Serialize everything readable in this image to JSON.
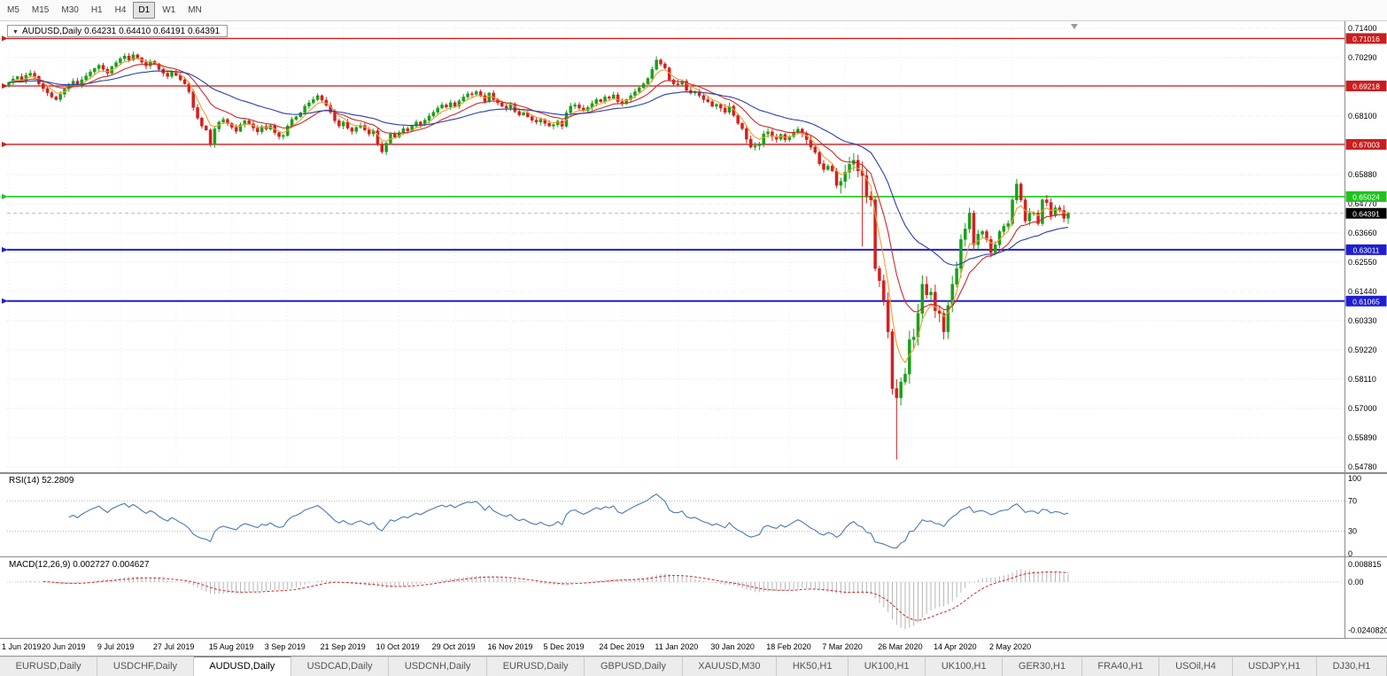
{
  "toolbar": {
    "timeframes": [
      "M5",
      "M15",
      "M30",
      "H1",
      "H4",
      "D1",
      "W1",
      "MN"
    ],
    "active": "D1"
  },
  "price_panel": {
    "dropdown_icon": "▼",
    "symbol_label": "AUDUSD,Daily",
    "ohlc_text": "0.64231 0.64410 0.64191 0.64391"
  },
  "rsi_panel": {
    "header": "RSI(14) 52.2809"
  },
  "macd_panel": {
    "header": "MACD(12,26,9) 0.002727 0.004627"
  },
  "chart_data": {
    "type": "candlestick",
    "title": "AUDUSD,Daily",
    "symbol": "AUDUSD",
    "timeframe": "Daily",
    "current_ohlc": {
      "open": 0.64231,
      "high": 0.6441,
      "low": 0.64191,
      "close": 0.64391
    },
    "price_axis": {
      "min": 0.5478,
      "max": 0.714,
      "ticks": [
        "0.71400",
        "0.70290",
        "0.69180",
        "0.68100",
        "0.66990",
        "0.65880",
        "0.64770",
        "0.63660",
        "0.62550",
        "0.61440",
        "0.60330",
        "0.59220",
        "0.58110",
        "0.57000",
        "0.55890",
        "0.54780"
      ]
    },
    "x_labels": [
      "1 Jun 2019",
      "20 Jun 2019",
      "9 Jul 2019",
      "27 Jul 2019",
      "15 Aug 2019",
      "3 Sep 2019",
      "21 Sep 2019",
      "10 Oct 2019",
      "29 Oct 2019",
      "16 Nov 2019",
      "5 Dec 2019",
      "24 Dec 2019",
      "11 Jan 2020",
      "30 Jan 2020",
      "18 Feb 2020",
      "7 Mar 2020",
      "26 Mar 2020",
      "14 Apr 2020",
      "2 May 2020"
    ],
    "closes": [
      0.6935,
      0.6948,
      0.6957,
      0.694,
      0.6962,
      0.697,
      0.6958,
      0.693,
      0.6912,
      0.6896,
      0.688,
      0.687,
      0.689,
      0.691,
      0.6928,
      0.694,
      0.6925,
      0.6945,
      0.696,
      0.6975,
      0.6988,
      0.7,
      0.6985,
      0.697,
      0.6995,
      0.701,
      0.7025,
      0.7035,
      0.702,
      0.704,
      0.7028,
      0.7012,
      0.6998,
      0.7015,
      0.7005,
      0.6985,
      0.697,
      0.6958,
      0.6975,
      0.6962,
      0.6945,
      0.693,
      0.69,
      0.684,
      0.68,
      0.677,
      0.6755,
      0.67,
      0.6759,
      0.6785,
      0.6795,
      0.678,
      0.6765,
      0.675,
      0.6775,
      0.679,
      0.6778,
      0.6762,
      0.6748,
      0.6768,
      0.6758,
      0.6772,
      0.6745,
      0.673,
      0.6734,
      0.677,
      0.6795,
      0.6805,
      0.682,
      0.6845,
      0.6858,
      0.687,
      0.6885,
      0.6868,
      0.6848,
      0.6822,
      0.679,
      0.677,
      0.6785,
      0.6762,
      0.675,
      0.6765,
      0.6772,
      0.6755,
      0.674,
      0.6752,
      0.67,
      0.6672,
      0.6705,
      0.674,
      0.6728,
      0.6745,
      0.676,
      0.6752,
      0.677,
      0.6785,
      0.6775,
      0.6792,
      0.6808,
      0.6822,
      0.6838,
      0.685,
      0.6842,
      0.6858,
      0.6845,
      0.6865,
      0.688,
      0.6892,
      0.689,
      0.69,
      0.6885,
      0.6862,
      0.6895,
      0.687,
      0.6858,
      0.6845,
      0.6838,
      0.685,
      0.6825,
      0.6812,
      0.682,
      0.6805,
      0.6792,
      0.6785,
      0.6795,
      0.678,
      0.677,
      0.6775,
      0.6788,
      0.6769,
      0.682,
      0.6845,
      0.685,
      0.6838,
      0.6828,
      0.684,
      0.6855,
      0.687,
      0.6862,
      0.688,
      0.6875,
      0.6888,
      0.6862,
      0.6855,
      0.687,
      0.6885,
      0.69,
      0.6915,
      0.693,
      0.695,
      0.6985,
      0.702,
      0.7005,
      0.699,
      0.6945,
      0.693,
      0.6928,
      0.694,
      0.6905,
      0.6895,
      0.69,
      0.6885,
      0.687,
      0.6862,
      0.6845,
      0.6852,
      0.6838,
      0.6822,
      0.6845,
      0.681,
      0.678,
      0.676,
      0.672,
      0.669,
      0.6695,
      0.6702,
      0.674,
      0.6748,
      0.673,
      0.672,
      0.6738,
      0.6718,
      0.673,
      0.6745,
      0.6758,
      0.6742,
      0.6718,
      0.669,
      0.667,
      0.6627,
      0.6605,
      0.6618,
      0.66,
      0.6545,
      0.656,
      0.6595,
      0.6625,
      0.664,
      0.66,
      0.6582,
      0.6505,
      0.649,
      0.623,
      0.6184,
      0.611,
      0.599,
      0.5775,
      0.574,
      0.58,
      0.583,
      0.596,
      0.597,
      0.606,
      0.617,
      0.613,
      0.614,
      0.607,
      0.606,
      0.599,
      0.609,
      0.617,
      0.623,
      0.634,
      0.638,
      0.644,
      0.632,
      0.636,
      0.637,
      0.634,
      0.629,
      0.632,
      0.637,
      0.639,
      0.64,
      0.649,
      0.655,
      0.649,
      0.641,
      0.644,
      0.644,
      0.64,
      0.649,
      0.648,
      0.643,
      0.646,
      0.645,
      0.642,
      0.6439
    ],
    "special_lows": {
      "199": 0.6313,
      "207": 0.5506
    },
    "levels": [
      {
        "price": 0.71016,
        "label": "0.71016",
        "color": "#c81e1e",
        "weight": 1.3
      },
      {
        "price": 0.69218,
        "label": "0.69218",
        "color": "#c81e1e",
        "weight": 1.3
      },
      {
        "price": 0.67003,
        "label": "0.67003",
        "color": "#c81e1e",
        "weight": 1.3
      },
      {
        "price": 0.65024,
        "label": "0.65024",
        "color": "#1ec41e",
        "weight": 1.6
      },
      {
        "price": 0.63011,
        "label": "0.63011",
        "color": "#1e1ecd",
        "weight": 2
      },
      {
        "price": 0.61065,
        "label": "0.61065",
        "color": "#1e1ecd",
        "weight": 2
      }
    ],
    "bid": {
      "price": 0.64391,
      "label": "0.64391",
      "color": "#000000"
    },
    "candle_colors": {
      "up": "#18a118",
      "down": "#d42020"
    },
    "moving_averages": [
      {
        "period": 5,
        "color": "#f09e2e"
      },
      {
        "period": 13,
        "color": "#cc2a2a"
      },
      {
        "period": 34,
        "color": "#2b3fa8"
      }
    ],
    "rsi": {
      "period": 14,
      "value": "52.2809",
      "levels": [
        70,
        30
      ],
      "ticks": [
        "100",
        "70",
        "30",
        "0"
      ],
      "color": "#4a7ab0"
    },
    "macd": {
      "params": "12,26,9",
      "value": "0.002727",
      "signal": "0.004627",
      "ticks": [
        "0.008815",
        "0.00",
        "-0.0240820"
      ],
      "hist_color": "#b5b5b5",
      "signal_color": "#cc2a2a"
    }
  },
  "tabs": {
    "active_index": 2,
    "items": [
      "EURUSD,Daily",
      "USDCHF,Daily",
      "AUDUSD,Daily",
      "USDCAD,Daily",
      "USDCNH,Daily",
      "EURUSD,Daily",
      "GBPUSD,Daily",
      "XAUUSD,M30",
      "HK50,H1",
      "UK100,H1",
      "UK100,H1",
      "GER30,H1",
      "FRA40,H1",
      "USOil,H4",
      "USDJPY,H1",
      "DJ30,H1"
    ]
  }
}
